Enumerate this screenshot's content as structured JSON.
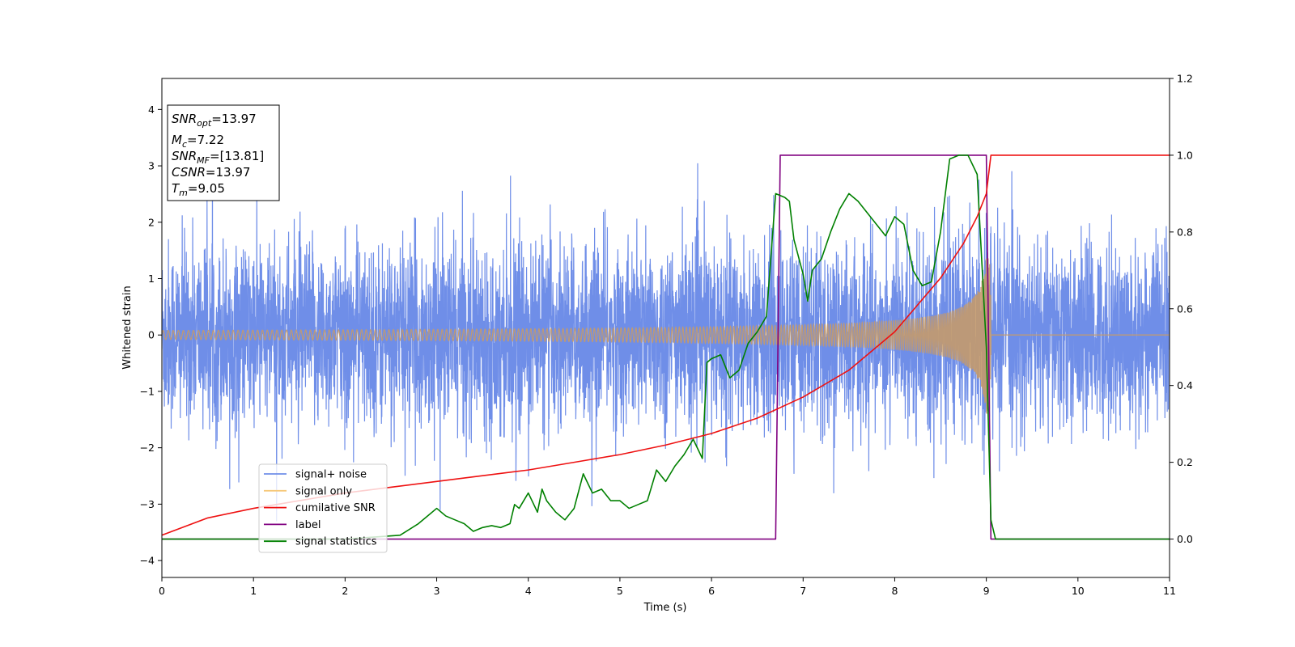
{
  "chart_data": {
    "type": "line",
    "xlabel": "Time (s)",
    "ylabel": "Whitened strain",
    "xlim": [
      0,
      11
    ],
    "ylim_left": [
      -4.3,
      4.55
    ],
    "ylim_right": [
      -0.1,
      1.2
    ],
    "x_ticks": [
      "0",
      "1",
      "2",
      "3",
      "4",
      "5",
      "6",
      "7",
      "8",
      "9",
      "10",
      "11"
    ],
    "x_tick_values": [
      0,
      1,
      2,
      3,
      4,
      5,
      6,
      7,
      8,
      9,
      10,
      11
    ],
    "y_left_ticks": [
      "4",
      "3",
      "2",
      "1",
      "0",
      "−1",
      "−2",
      "−3",
      "−4"
    ],
    "y_left_tick_values": [
      4,
      3,
      2,
      1,
      0,
      -1,
      -2,
      -3,
      -4
    ],
    "y_right_ticks": [
      "1.2",
      "1.0",
      "0.8",
      "0.6",
      "0.4",
      "0.2",
      "0.0"
    ],
    "y_right_tick_values": [
      1.2,
      1.0,
      0.8,
      0.6,
      0.4,
      0.2,
      0.0
    ],
    "legend_position": "lower-left",
    "series": [
      {
        "name": "signal+ noise",
        "color": "#6f8ee8",
        "axis": "left",
        "description_points": "white noise, amplitude ~ +/-2.3 with spikes up to 4.2"
      },
      {
        "name": "signal only",
        "color": "#f6c97a",
        "axis": "left",
        "chirp_end_time": 9.05,
        "start_amplitude": 0.08,
        "end_amplitude": 1.4
      },
      {
        "name": "cumilative SNR",
        "color": "#ee1111",
        "axis": "right",
        "x": [
          0,
          0.5,
          1,
          1.5,
          2,
          2.5,
          3,
          3.5,
          4,
          4.5,
          5,
          5.5,
          6,
          6.5,
          7,
          7.5,
          8,
          8.5,
          8.75,
          8.9,
          9.0,
          9.05,
          11
        ],
        "y": [
          0.01,
          0.055,
          0.08,
          0.1,
          0.12,
          0.135,
          0.15,
          0.165,
          0.18,
          0.2,
          0.22,
          0.245,
          0.275,
          0.315,
          0.37,
          0.44,
          0.54,
          0.68,
          0.77,
          0.84,
          0.9,
          1.0,
          1.0
        ]
      },
      {
        "name": "label",
        "color": "#800080",
        "axis": "right",
        "x": [
          0,
          6.7,
          6.75,
          9.0,
          9.05,
          11
        ],
        "y": [
          0,
          0,
          1,
          1,
          0,
          0
        ]
      },
      {
        "name": "signal statistics",
        "color": "#008000",
        "axis": "right",
        "x": [
          0,
          0.5,
          1,
          1.5,
          2,
          2.3,
          2.6,
          2.8,
          3.0,
          3.1,
          3.2,
          3.3,
          3.4,
          3.5,
          3.6,
          3.7,
          3.8,
          3.85,
          3.9,
          4.0,
          4.1,
          4.15,
          4.2,
          4.3,
          4.4,
          4.5,
          4.6,
          4.7,
          4.8,
          4.9,
          5.0,
          5.1,
          5.2,
          5.3,
          5.4,
          5.5,
          5.6,
          5.7,
          5.8,
          5.9,
          5.95,
          6.0,
          6.1,
          6.2,
          6.3,
          6.4,
          6.5,
          6.6,
          6.7,
          6.8,
          6.85,
          6.9,
          7.0,
          7.05,
          7.1,
          7.2,
          7.3,
          7.4,
          7.5,
          7.6,
          7.7,
          7.8,
          7.9,
          8.0,
          8.1,
          8.2,
          8.3,
          8.4,
          8.5,
          8.6,
          8.7,
          8.8,
          8.9,
          9.0,
          9.05,
          9.1,
          11
        ],
        "y": [
          0,
          0,
          0,
          0,
          0,
          0.005,
          0.01,
          0.04,
          0.08,
          0.06,
          0.05,
          0.04,
          0.02,
          0.03,
          0.035,
          0.03,
          0.04,
          0.09,
          0.08,
          0.12,
          0.07,
          0.13,
          0.1,
          0.07,
          0.05,
          0.08,
          0.17,
          0.12,
          0.13,
          0.1,
          0.1,
          0.08,
          0.09,
          0.1,
          0.18,
          0.15,
          0.19,
          0.22,
          0.26,
          0.21,
          0.46,
          0.47,
          0.48,
          0.42,
          0.44,
          0.51,
          0.54,
          0.58,
          0.9,
          0.89,
          0.88,
          0.78,
          0.69,
          0.62,
          0.7,
          0.73,
          0.8,
          0.86,
          0.9,
          0.88,
          0.85,
          0.82,
          0.79,
          0.84,
          0.82,
          0.7,
          0.66,
          0.67,
          0.8,
          0.99,
          1.0,
          1.0,
          0.95,
          0.5,
          0.05,
          0.0,
          0.0
        ]
      }
    ],
    "annotation": {
      "lines": [
        {
          "base": "SNR",
          "sub": "opt",
          "value": "=13.97"
        },
        {
          "base": "M",
          "sub": "c",
          "value": "=7.22"
        },
        {
          "base": "SNR",
          "sub": "MF",
          "value": "=[13.81]"
        },
        {
          "base": "CSNR",
          "sub": "",
          "value": "=13.97"
        },
        {
          "base": "T",
          "sub": "m",
          "value": "=9.05"
        }
      ]
    }
  }
}
